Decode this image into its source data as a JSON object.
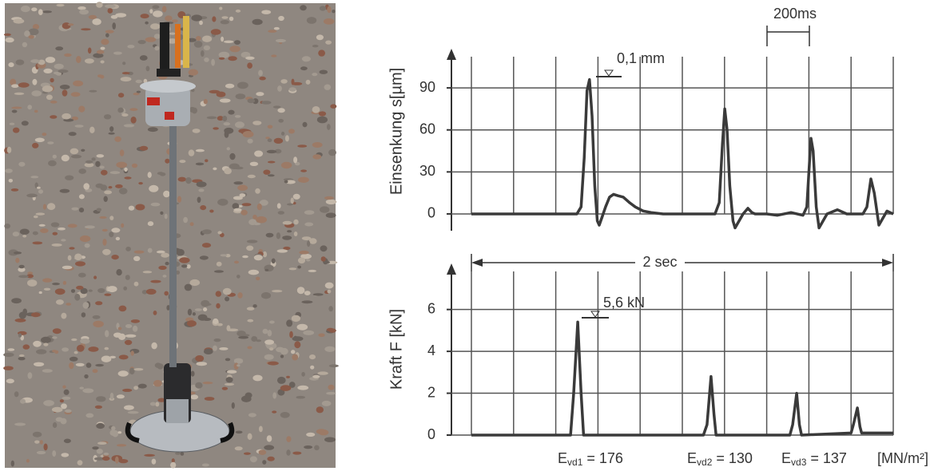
{
  "chart_data": [
    {
      "type": "line",
      "ylabel": "Einsenkung s[µm]",
      "ylim": [
        -12,
        118
      ],
      "yticks": [
        0,
        30,
        60,
        90
      ],
      "xlim": [
        0,
        2000
      ],
      "xticks": [
        0,
        200,
        400,
        600,
        800,
        1000,
        1200,
        1400,
        1600,
        1800,
        2000
      ],
      "grid": true,
      "color": "#3a3a3a",
      "annotations": [
        "0,1 mm",
        "200ms"
      ],
      "x": [
        0,
        500,
        520,
        535,
        548,
        560,
        572,
        585,
        597,
        606,
        620,
        636,
        655,
        674,
        695,
        720,
        750,
        777,
        815,
        852,
        909,
        1100,
        1155,
        1175,
        1190,
        1201,
        1212,
        1225,
        1240,
        1250,
        1265,
        1288,
        1311,
        1330,
        1345,
        1400,
        1450,
        1515,
        1572,
        1590,
        1600,
        1610,
        1620,
        1635,
        1648,
        1686,
        1735,
        1780,
        1856,
        1875,
        1894,
        1910,
        1932,
        1970,
        1985,
        2000
      ],
      "values": [
        0,
        0,
        5,
        40,
        88,
        96,
        70,
        20,
        -5,
        -8,
        -2,
        5,
        12,
        14,
        13,
        12,
        8,
        5,
        2,
        1,
        0,
        0,
        0,
        8,
        50,
        75,
        60,
        20,
        -5,
        -10,
        -6,
        0,
        4,
        1,
        0,
        0,
        -1,
        1,
        -1,
        5,
        30,
        54,
        45,
        5,
        -10,
        0,
        3,
        0,
        0,
        5,
        25,
        15,
        -8,
        2,
        1,
        0
      ]
    },
    {
      "type": "line",
      "ylabel": "Kraft F [kN]",
      "ylim": [
        0,
        8.2
      ],
      "yticks": [
        0,
        2,
        4,
        6
      ],
      "xlim": [
        0,
        2000
      ],
      "xticks": [
        0,
        200,
        400,
        600,
        800,
        1000,
        1200,
        1400,
        1600,
        1800,
        2000
      ],
      "grid": true,
      "color": "#3a3a3a",
      "annotations": [
        "2 sec",
        "5,6 kN"
      ],
      "moduli": [
        {
          "symbol": "E",
          "subscript": "vd1",
          "text": "= 176"
        },
        {
          "symbol": "E",
          "subscript": "vd2",
          "text": "= 130"
        },
        {
          "symbol": "E",
          "subscript": "vd3",
          "text": "= 137"
        }
      ],
      "unit": "[MN/m²]",
      "x": [
        0,
        470,
        485,
        504,
        520,
        532,
        1100,
        1117,
        1136,
        1150,
        1160,
        1510,
        1523,
        1542,
        1555,
        1565,
        1800,
        1811,
        1830,
        1842,
        1850,
        2000
      ],
      "values": [
        0,
        0,
        2,
        5.4,
        2,
        0,
        0,
        0.5,
        2.8,
        1,
        0,
        0,
        0.5,
        2.0,
        0.5,
        0,
        0.1,
        0.5,
        1.3,
        0.4,
        0.1,
        0.1
      ]
    }
  ]
}
